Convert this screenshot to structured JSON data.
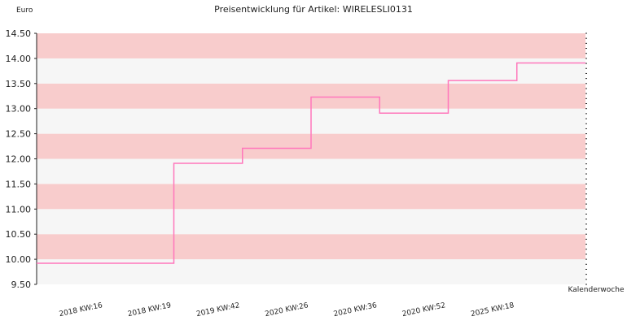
{
  "chart_data": {
    "type": "line",
    "step": true,
    "title": "Preisentwicklung für Artikel: WIRELESLI0131",
    "ylabel": "Euro",
    "xlabel": "Kalenderwoche",
    "ylim": [
      9.5,
      14.5
    ],
    "ytick_values": [
      9.5,
      10.0,
      10.5,
      11.0,
      11.5,
      12.0,
      12.5,
      13.0,
      13.5,
      14.0,
      14.5
    ],
    "ytick_labels": [
      "9.50",
      "10.00",
      "10.50",
      "11.00",
      "11.50",
      "12.00",
      "12.50",
      "13.00",
      "13.50",
      "14.00",
      "14.50"
    ],
    "categories": [
      "2018 KW:16",
      "2018 KW:19",
      "2019 KW:42",
      "2020 KW:26",
      "2020 KW:36",
      "2020 KW:52",
      "2025 KW:18"
    ],
    "series": [
      {
        "values": [
          9.92,
          11.91,
          12.21,
          13.23,
          12.91,
          13.56,
          13.91
        ]
      }
    ],
    "colors": {
      "line": "#ff77bb",
      "band_dark": "#f8cccc",
      "band_light": "#f6f6f6",
      "axis": "#222222"
    },
    "grid": false
  }
}
